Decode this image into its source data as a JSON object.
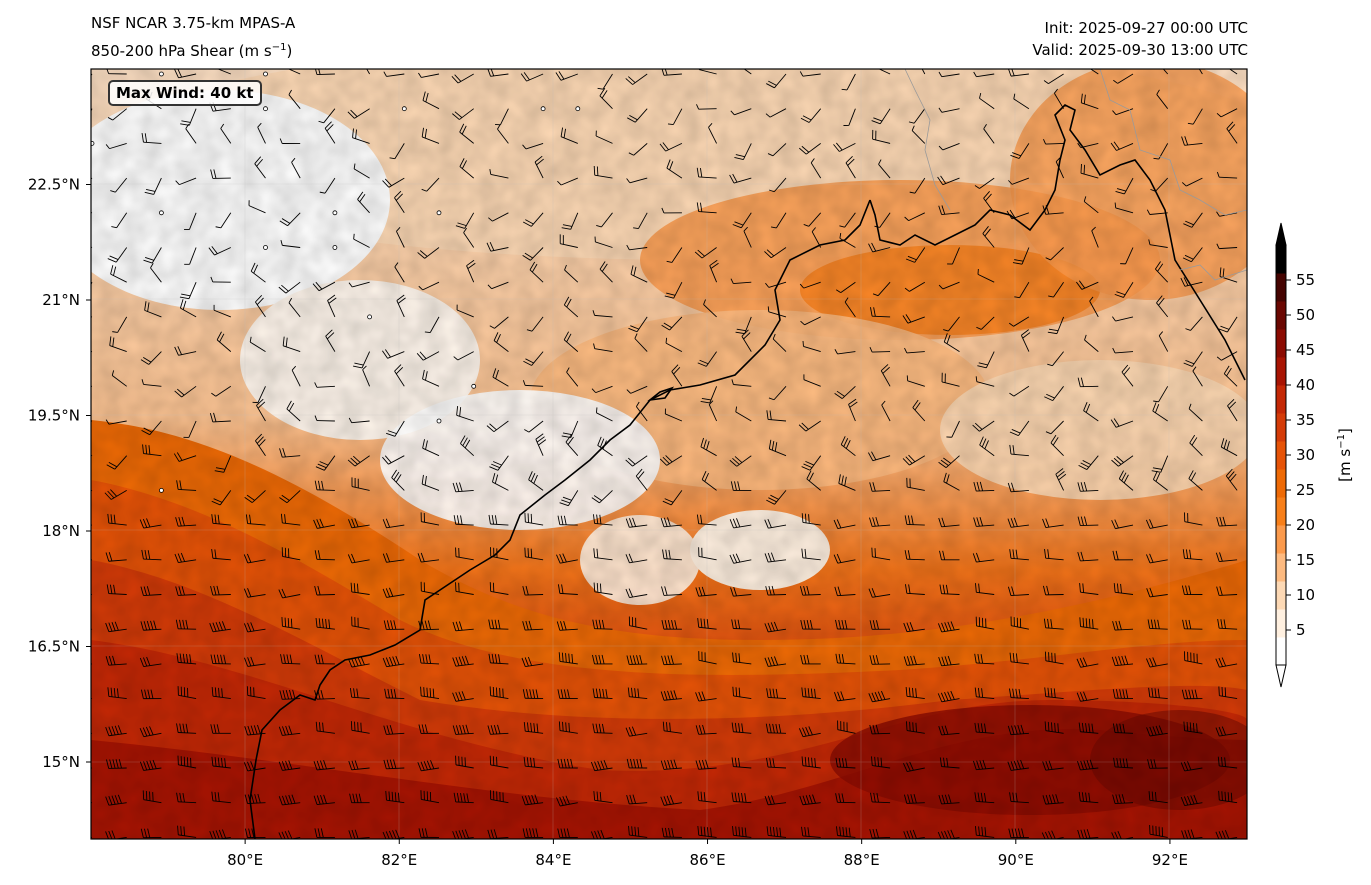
{
  "header": {
    "model": "NSF NCAR 3.75-km MPAS-A",
    "field": "850-200 hPa Shear (m s",
    "field_sup": "−1",
    "field_close": ")",
    "init": "Init: 2025-09-27 00:00 UTC",
    "valid": "Valid: 2025-09-30 13:00 UTC"
  },
  "annotation": {
    "max_wind": "Max Wind: 40 kt"
  },
  "axes": {
    "lon_ticks": [
      "80°E",
      "82°E",
      "84°E",
      "86°E",
      "88°E",
      "90°E",
      "92°E"
    ],
    "lon_values": [
      80,
      82,
      84,
      86,
      88,
      90,
      92
    ],
    "lat_ticks": [
      "22.5°N",
      "21°N",
      "19.5°N",
      "18°N",
      "16.5°N",
      "15°N"
    ],
    "lat_values": [
      22.5,
      21,
      19.5,
      18,
      16.5,
      15
    ],
    "lon_range": [
      78,
      93
    ],
    "lat_range": [
      14,
      24
    ]
  },
  "colorbar": {
    "ticks": [
      "55",
      "50",
      "45",
      "40",
      "35",
      "30",
      "25",
      "20",
      "15",
      "10",
      "5"
    ],
    "values": [
      55,
      50,
      45,
      40,
      35,
      30,
      25,
      20,
      15,
      10,
      5
    ],
    "range": [
      0,
      60
    ],
    "label_base": "[m s",
    "label_sup": "−1",
    "label_close": "]",
    "colors": [
      "#ffffff",
      "#fff0e0",
      "#fdd9b5",
      "#fdba80",
      "#fb9a4c",
      "#f77f1a",
      "#ee6a06",
      "#e65307",
      "#d43b08",
      "#c42806",
      "#a81403",
      "#8b0b02",
      "#6a0702",
      "#450401",
      "#000000"
    ]
  },
  "style": {
    "coast": "#000000",
    "border": "#9a9a9a"
  }
}
